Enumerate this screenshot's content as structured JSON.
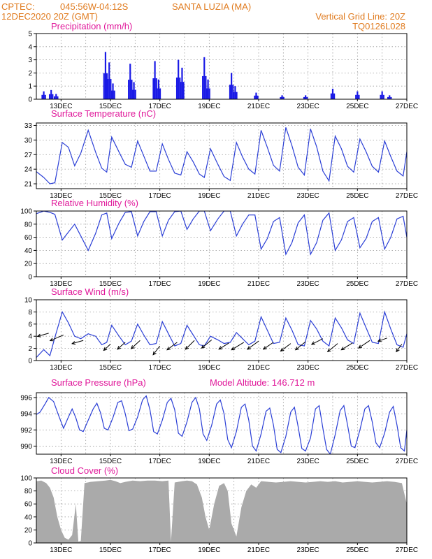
{
  "header": {
    "source": "CPTEC:",
    "coords": "045:56W-04:12S",
    "location": "SANTA LUZIA (MA)",
    "run": "12DEC2020 20Z (GMT)",
    "vgrid": "Vertical Grid Line: 20Z",
    "code": "TQ0126L028"
  },
  "colors": {
    "line": "#2b3fd6",
    "bar": "#1a1ae6",
    "cloud": "#aaaaaa",
    "header": "#e07b1f",
    "title": "#e0189a"
  },
  "chart_data": [
    {
      "type": "bar",
      "title": "Precipitation (mm/h)",
      "ylim": [
        0,
        5
      ],
      "yticks": [
        "0",
        "1",
        "2",
        "3",
        "4",
        "5"
      ],
      "xticks": [
        "13DEC",
        "15DEC",
        "17DEC",
        "19DEC",
        "21DEC",
        "23DEC",
        "25DEC",
        "27DEC"
      ],
      "peaks": [
        {
          "x": 12.3,
          "v": 0.6
        },
        {
          "x": 12.6,
          "v": 0.7
        },
        {
          "x": 12.8,
          "v": 0.4
        },
        {
          "x": 14.8,
          "v": 3.6
        },
        {
          "x": 14.95,
          "v": 2.8
        },
        {
          "x": 15.1,
          "v": 1.2
        },
        {
          "x": 15.8,
          "v": 2.7
        },
        {
          "x": 15.95,
          "v": 1.3
        },
        {
          "x": 16.8,
          "v": 2.9
        },
        {
          "x": 16.95,
          "v": 1.5
        },
        {
          "x": 17.75,
          "v": 3.0
        },
        {
          "x": 17.9,
          "v": 2.4
        },
        {
          "x": 18.8,
          "v": 3.2
        },
        {
          "x": 18.95,
          "v": 1.5
        },
        {
          "x": 19.9,
          "v": 2.0
        },
        {
          "x": 20.05,
          "v": 1.0
        },
        {
          "x": 20.9,
          "v": 0.5
        },
        {
          "x": 21.95,
          "v": 0.3
        },
        {
          "x": 22.9,
          "v": 0.3
        },
        {
          "x": 24.0,
          "v": 0.8
        },
        {
          "x": 25.0,
          "v": 0.6
        },
        {
          "x": 26.0,
          "v": 0.6
        },
        {
          "x": 26.3,
          "v": 0.3
        }
      ]
    },
    {
      "type": "line",
      "title": "Surface Temperature (nC)",
      "ylim": [
        20,
        33.5
      ],
      "yticks": [
        "21",
        "24",
        "27",
        "30",
        "33"
      ],
      "xticks": [
        "13DEC",
        "15DEC",
        "17DEC",
        "19DEC",
        "21DEC",
        "23DEC",
        "25DEC",
        "27DEC"
      ],
      "x": [
        12.0,
        12.3,
        12.55,
        12.75,
        13.05,
        13.3,
        13.55,
        13.8,
        14.1,
        14.4,
        14.65,
        14.85,
        15.05,
        15.35,
        15.6,
        15.85,
        16.1,
        16.35,
        16.6,
        16.85,
        17.1,
        17.35,
        17.6,
        17.85,
        18.1,
        18.35,
        18.6,
        18.8,
        19.05,
        19.35,
        19.6,
        19.85,
        20.1,
        20.35,
        20.6,
        20.85,
        21.1,
        21.35,
        21.6,
        21.85,
        22.1,
        22.35,
        22.6,
        22.85,
        23.1,
        23.35,
        23.6,
        23.85,
        24.1,
        24.35,
        24.6,
        24.85,
        25.1,
        25.35,
        25.6,
        25.85,
        26.1,
        26.35,
        26.6,
        26.85,
        27.0
      ],
      "values": [
        23.5,
        22.3,
        21.0,
        21.2,
        29.5,
        28.5,
        24.7,
        27.3,
        32.0,
        27.5,
        24.2,
        23.4,
        30.6,
        27.5,
        25.0,
        24.4,
        29.8,
        26.7,
        23.6,
        23.6,
        29.2,
        26.0,
        23.2,
        22.8,
        27.6,
        25.5,
        23.0,
        22.3,
        28.2,
        25.0,
        22.5,
        21.7,
        29.5,
        26.5,
        24.0,
        23.0,
        32.0,
        28.5,
        24.8,
        23.6,
        32.6,
        28.8,
        24.4,
        22.8,
        32.3,
        28.6,
        23.6,
        21.6,
        30.8,
        28.2,
        24.6,
        23.4,
        30.2,
        27.6,
        24.6,
        23.4,
        29.8,
        26.6,
        23.6,
        22.6,
        27.6
      ]
    },
    {
      "type": "line",
      "title": "Relative Humidity (%)",
      "ylim": [
        0,
        100
      ],
      "yticks": [
        "0",
        "20",
        "40",
        "60",
        "80",
        "100"
      ],
      "xticks": [
        "13DEC",
        "15DEC",
        "17DEC",
        "19DEC",
        "21DEC",
        "23DEC",
        "25DEC",
        "27DEC"
      ],
      "x": [
        12.0,
        12.3,
        12.55,
        12.75,
        13.05,
        13.3,
        13.55,
        13.8,
        14.1,
        14.4,
        14.65,
        14.85,
        15.05,
        15.35,
        15.6,
        15.85,
        16.1,
        16.35,
        16.6,
        16.85,
        17.1,
        17.35,
        17.6,
        17.85,
        18.1,
        18.35,
        18.6,
        18.8,
        19.05,
        19.35,
        19.6,
        19.85,
        20.1,
        20.35,
        20.6,
        20.85,
        21.1,
        21.35,
        21.6,
        21.85,
        22.1,
        22.35,
        22.6,
        22.85,
        23.1,
        23.35,
        23.6,
        23.85,
        24.1,
        24.35,
        24.6,
        24.85,
        25.1,
        25.35,
        25.6,
        25.85,
        26.1,
        26.35,
        26.6,
        26.85,
        27.0
      ],
      "values": [
        96,
        100,
        98,
        95,
        56,
        68,
        80,
        62,
        40,
        66,
        94,
        97,
        58,
        82,
        98,
        99,
        62,
        84,
        99,
        99,
        62,
        86,
        99,
        100,
        72,
        88,
        100,
        100,
        70,
        88,
        100,
        100,
        62,
        80,
        94,
        94,
        42,
        58,
        84,
        90,
        34,
        52,
        82,
        94,
        34,
        52,
        86,
        97,
        40,
        56,
        84,
        90,
        44,
        58,
        84,
        90,
        42,
        60,
        88,
        92,
        60
      ]
    },
    {
      "type": "line",
      "title": "Surface Wind (m/s)",
      "ylim": [
        0,
        10
      ],
      "yticks": [
        "0",
        "2",
        "4",
        "6",
        "8",
        "10"
      ],
      "xticks": [
        "13DEC",
        "15DEC",
        "17DEC",
        "19DEC",
        "21DEC",
        "23DEC",
        "25DEC",
        "27DEC"
      ],
      "x": [
        12.0,
        12.3,
        12.55,
        12.75,
        13.05,
        13.3,
        13.55,
        13.8,
        14.1,
        14.4,
        14.65,
        14.85,
        15.05,
        15.35,
        15.6,
        15.85,
        16.1,
        16.35,
        16.6,
        16.85,
        17.1,
        17.35,
        17.6,
        17.85,
        18.1,
        18.35,
        18.6,
        18.8,
        19.05,
        19.35,
        19.6,
        19.85,
        20.1,
        20.35,
        20.6,
        20.85,
        21.1,
        21.35,
        21.6,
        21.85,
        22.1,
        22.35,
        22.6,
        22.85,
        23.1,
        23.35,
        23.6,
        23.85,
        24.1,
        24.35,
        24.6,
        24.85,
        25.1,
        25.35,
        25.6,
        25.85,
        26.1,
        26.35,
        26.6,
        26.85,
        27.0
      ],
      "values": [
        0.5,
        1.8,
        0.8,
        3.8,
        8.0,
        6.2,
        4.0,
        3.6,
        4.4,
        4.0,
        2.6,
        3.0,
        5.8,
        4.0,
        2.6,
        3.2,
        6.0,
        4.2,
        2.6,
        2.8,
        6.4,
        4.4,
        2.4,
        2.8,
        5.8,
        4.2,
        2.6,
        2.4,
        4.0,
        3.4,
        2.8,
        3.0,
        4.6,
        3.6,
        2.6,
        3.2,
        7.2,
        5.0,
        2.8,
        3.0,
        7.0,
        5.0,
        2.6,
        2.4,
        6.6,
        5.2,
        3.2,
        2.4,
        7.0,
        5.4,
        3.4,
        2.8,
        7.8,
        5.4,
        3.0,
        2.8,
        8.0,
        5.2,
        2.6,
        2.2,
        4.4
      ],
      "vectors": [
        {
          "x": 12.5,
          "v": 4.5,
          "u": -1.0,
          "w": 0.5
        },
        {
          "x": 13.1,
          "v": 4.2,
          "u": -1.2,
          "w": 0.9
        },
        {
          "x": 13.9,
          "v": 3.3,
          "u": -1.0,
          "w": 0.5
        },
        {
          "x": 15.0,
          "v": 2.7,
          "u": -0.6,
          "w": 1.0
        },
        {
          "x": 15.6,
          "v": 3.0,
          "u": -0.7,
          "w": 1.1
        },
        {
          "x": 16.2,
          "v": 3.3,
          "u": -0.8,
          "w": 1.3
        },
        {
          "x": 17.0,
          "v": 2.4,
          "u": -0.6,
          "w": 1.4
        },
        {
          "x": 17.7,
          "v": 3.0,
          "u": -0.9,
          "w": 1.2
        },
        {
          "x": 18.4,
          "v": 3.3,
          "u": -0.8,
          "w": 1.4
        },
        {
          "x": 19.1,
          "v": 3.4,
          "u": -0.9,
          "w": 1.3
        },
        {
          "x": 19.8,
          "v": 2.9,
          "u": -0.9,
          "w": 1.0
        },
        {
          "x": 20.4,
          "v": 3.0,
          "u": -1.1,
          "w": 1.2
        },
        {
          "x": 21.0,
          "v": 3.2,
          "u": -1.0,
          "w": 1.3
        },
        {
          "x": 21.6,
          "v": 3.0,
          "u": -0.9,
          "w": 1.1
        },
        {
          "x": 22.3,
          "v": 2.8,
          "u": -0.9,
          "w": 1.2
        },
        {
          "x": 22.9,
          "v": 3.1,
          "u": -0.9,
          "w": 1.3
        },
        {
          "x": 23.6,
          "v": 3.6,
          "u": -1.0,
          "w": 0.9
        },
        {
          "x": 24.2,
          "v": 2.8,
          "u": -0.9,
          "w": 1.3
        },
        {
          "x": 24.8,
          "v": 2.9,
          "u": -1.0,
          "w": 1.1
        },
        {
          "x": 25.5,
          "v": 3.3,
          "u": -1.0,
          "w": 1.2
        },
        {
          "x": 26.2,
          "v": 3.7,
          "u": -0.8,
          "w": 0.5
        },
        {
          "x": 26.8,
          "v": 2.7,
          "u": -0.5,
          "w": 1.2
        }
      ]
    },
    {
      "type": "line",
      "title": "Surface Pressure (hPa)",
      "annotation": "Model Altitude: 146.712 m",
      "ylim": [
        989,
        996.6
      ],
      "yticks": [
        "990",
        "992",
        "994",
        "996"
      ],
      "xticks": [
        "13DEC",
        "15DEC",
        "17DEC",
        "19DEC",
        "21DEC",
        "23DEC",
        "25DEC",
        "27DEC"
      ],
      "x": [
        12.0,
        12.15,
        12.35,
        12.5,
        12.7,
        12.9,
        13.1,
        13.3,
        13.45,
        13.6,
        13.75,
        13.9,
        14.1,
        14.3,
        14.45,
        14.6,
        14.75,
        14.9,
        15.1,
        15.3,
        15.45,
        15.6,
        15.75,
        15.9,
        16.1,
        16.3,
        16.45,
        16.6,
        16.75,
        16.9,
        17.1,
        17.3,
        17.45,
        17.6,
        17.75,
        17.9,
        18.1,
        18.3,
        18.45,
        18.6,
        18.75,
        18.9,
        19.1,
        19.3,
        19.45,
        19.6,
        19.75,
        19.9,
        20.1,
        20.3,
        20.45,
        20.6,
        20.75,
        20.9,
        21.1,
        21.3,
        21.45,
        21.6,
        21.75,
        21.9,
        22.1,
        22.3,
        22.45,
        22.6,
        22.75,
        22.9,
        23.1,
        23.3,
        23.45,
        23.6,
        23.75,
        23.9,
        24.1,
        24.3,
        24.45,
        24.6,
        24.75,
        24.9,
        25.1,
        25.3,
        25.45,
        25.6,
        25.75,
        25.9,
        26.1,
        26.3,
        26.45,
        26.6,
        26.75,
        26.9,
        27.0
      ],
      "values": [
        993.9,
        994.2,
        995.2,
        996.0,
        995.5,
        993.8,
        992.2,
        993.6,
        994.6,
        993.5,
        992.0,
        991.8,
        993.2,
        994.6,
        995.3,
        994.1,
        992.2,
        992.0,
        993.5,
        995.4,
        995.6,
        994.0,
        991.9,
        992.1,
        993.6,
        995.7,
        996.2,
        994.5,
        991.8,
        991.5,
        993.2,
        995.4,
        995.9,
        994.5,
        991.6,
        991.2,
        993.0,
        995.4,
        996.0,
        994.6,
        991.5,
        990.7,
        992.6,
        995.2,
        995.7,
        994.0,
        990.8,
        989.8,
        991.8,
        994.8,
        995.2,
        993.2,
        990.0,
        989.4,
        991.5,
        994.3,
        994.7,
        992.6,
        989.6,
        989.2,
        991.2,
        994.2,
        994.8,
        992.4,
        989.7,
        989.4,
        991.0,
        994.6,
        995.0,
        992.2,
        989.6,
        989.0,
        991.4,
        994.4,
        995.0,
        992.6,
        990.0,
        989.8,
        992.0,
        994.6,
        995.0,
        993.0,
        990.4,
        989.8,
        991.6,
        994.2,
        994.9,
        992.6,
        989.8,
        989.4,
        992.0
      ]
    },
    {
      "type": "area",
      "title": "Cloud Cover (%)",
      "ylim": [
        0,
        100
      ],
      "yticks": [
        "0",
        "20",
        "40",
        "60",
        "80",
        "100"
      ],
      "xticks": [
        "13DEC",
        "15DEC",
        "17DEC",
        "19DEC",
        "21DEC",
        "23DEC",
        "25DEC",
        "27DEC"
      ],
      "x": [
        12.0,
        12.2,
        12.4,
        12.55,
        12.7,
        12.85,
        13.0,
        13.15,
        13.3,
        13.45,
        13.6,
        13.7,
        13.8,
        13.95,
        14.2,
        14.5,
        14.8,
        15.0,
        15.2,
        15.4,
        15.6,
        15.9,
        16.2,
        16.5,
        16.8,
        17.1,
        17.35,
        17.45,
        17.6,
        17.9,
        18.1,
        18.3,
        18.5,
        18.7,
        18.85,
        19.0,
        19.2,
        19.4,
        19.6,
        19.75,
        19.9,
        20.1,
        20.3,
        20.5,
        20.7,
        20.9,
        21.1,
        21.4,
        21.7,
        22.0,
        22.3,
        22.6,
        22.9,
        23.2,
        23.5,
        23.8,
        24.1,
        24.4,
        24.7,
        25.0,
        25.3,
        25.6,
        25.9,
        26.2,
        26.5,
        26.8,
        27.0
      ],
      "values": [
        95,
        96,
        92,
        85,
        70,
        40,
        20,
        8,
        5,
        12,
        60,
        2,
        3,
        92,
        94,
        95,
        96,
        97,
        95,
        92,
        94,
        96,
        95,
        96,
        96,
        95,
        96,
        2,
        93,
        95,
        96,
        95,
        90,
        70,
        40,
        20,
        60,
        88,
        92,
        80,
        30,
        10,
        55,
        80,
        90,
        85,
        95,
        94,
        93,
        94,
        95,
        94,
        93,
        94,
        95,
        94,
        95,
        93,
        94,
        95,
        94,
        93,
        94,
        95,
        94,
        92,
        60
      ]
    }
  ]
}
